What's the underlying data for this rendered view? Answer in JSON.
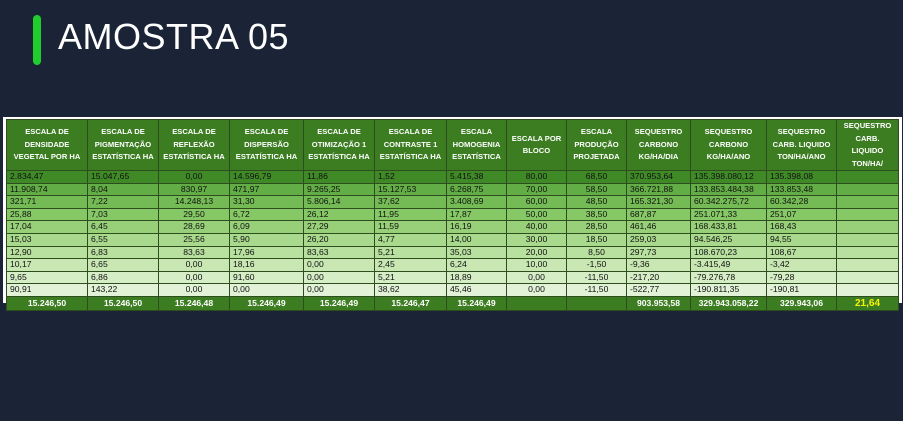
{
  "title": "AMOSTRA 05",
  "colors": {
    "accent": "#1fce2c",
    "header_bg": "#3c7d22",
    "background": "#1b2436",
    "highlight": "#f5f50a"
  },
  "table": {
    "headers": [
      "ESCALA DE DENSIDADE VEGETAL POR HA",
      "ESCALA DE PIGMENTAÇÃO ESTATÍSTICA HA",
      "ESCALA DE REFLEXÃO ESTATÍSTICA HA",
      "ESCALA DE DISPERSÃO ESTATÍSTICA HA",
      "ESCALA DE OTIMIZAÇÃO 1 ESTATÍSTICA HA",
      "ESCALA DE CONTRASTE 1 ESTATÍSTICA HA",
      "ESCALA HOMOGENIA ESTATÍSTICA",
      "ESCALA POR BLOCO",
      "ESCALA PRODUÇÃO PROJETADA",
      "SEQUESTRO CARBONO KG/HA/DIA",
      "SEQUESTRO CARBONO KG/HA/ANO",
      "SEQUESTRO CARB. LIQUIDO TON/HA/ANO",
      "SEQUESTRO CARB. LIQUIDO TON/HA/"
    ],
    "rows": [
      [
        "2.834,47",
        "15.047,65",
        "0,00",
        "14.596,79",
        "11,86",
        "1,52",
        "5.415,38",
        "80,00",
        "68,50",
        "370.953,64",
        "135.398.080,12",
        "135.398,08",
        ""
      ],
      [
        "11.908,74",
        "8,04",
        "830,97",
        "471,97",
        "9.265,25",
        "15.127,53",
        "6.268,75",
        "70,00",
        "58,50",
        "366.721,88",
        "133.853.484,38",
        "133.853,48",
        ""
      ],
      [
        "321,71",
        "7,22",
        "14.248,13",
        "31,30",
        "5.806,14",
        "37,62",
        "3.408,69",
        "60,00",
        "48,50",
        "165.321,30",
        "60.342.275,72",
        "60.342,28",
        ""
      ],
      [
        "25,88",
        "7,03",
        "29,50",
        "6,72",
        "26,12",
        "11,95",
        "17,87",
        "50,00",
        "38,50",
        "687,87",
        "251.071,33",
        "251,07",
        ""
      ],
      [
        "17,04",
        "6,45",
        "28,69",
        "6,09",
        "27,29",
        "11,59",
        "16,19",
        "40,00",
        "28,50",
        "461,46",
        "168.433,81",
        "168,43",
        ""
      ],
      [
        "15,03",
        "6,55",
        "25,56",
        "5,90",
        "26,20",
        "4,77",
        "14,00",
        "30,00",
        "18,50",
        "259,03",
        "94.546,25",
        "94,55",
        ""
      ],
      [
        "12,90",
        "6,83",
        "83,63",
        "17,96",
        "83,63",
        "5,21",
        "35,03",
        "20,00",
        "8,50",
        "297,73",
        "108.670,23",
        "108,67",
        ""
      ],
      [
        "10,17",
        "6,65",
        "0,00",
        "18,16",
        "0,00",
        "2,45",
        "6,24",
        "10,00",
        "-1,50",
        "-9,36",
        "-3.415,49",
        "-3,42",
        ""
      ],
      [
        "9,65",
        "6,86",
        "0,00",
        "91,60",
        "0,00",
        "5,21",
        "18,89",
        "0,00",
        "-11,50",
        "-217,20",
        "-79.276,78",
        "-79,28",
        ""
      ],
      [
        "90,91",
        "143,22",
        "0,00",
        "0,00",
        "0,00",
        "38,62",
        "45,46",
        "0,00",
        "-11,50",
        "-522,77",
        "-190.811,35",
        "-190,81",
        ""
      ]
    ],
    "totals": [
      "15.246,50",
      "15.246,50",
      "15.246,48",
      "15.246,49",
      "15.246,49",
      "15.246,47",
      "15.246,49",
      "",
      "",
      "903.953,58",
      "329.943.058,22",
      "329.943,06",
      "21,64"
    ]
  }
}
